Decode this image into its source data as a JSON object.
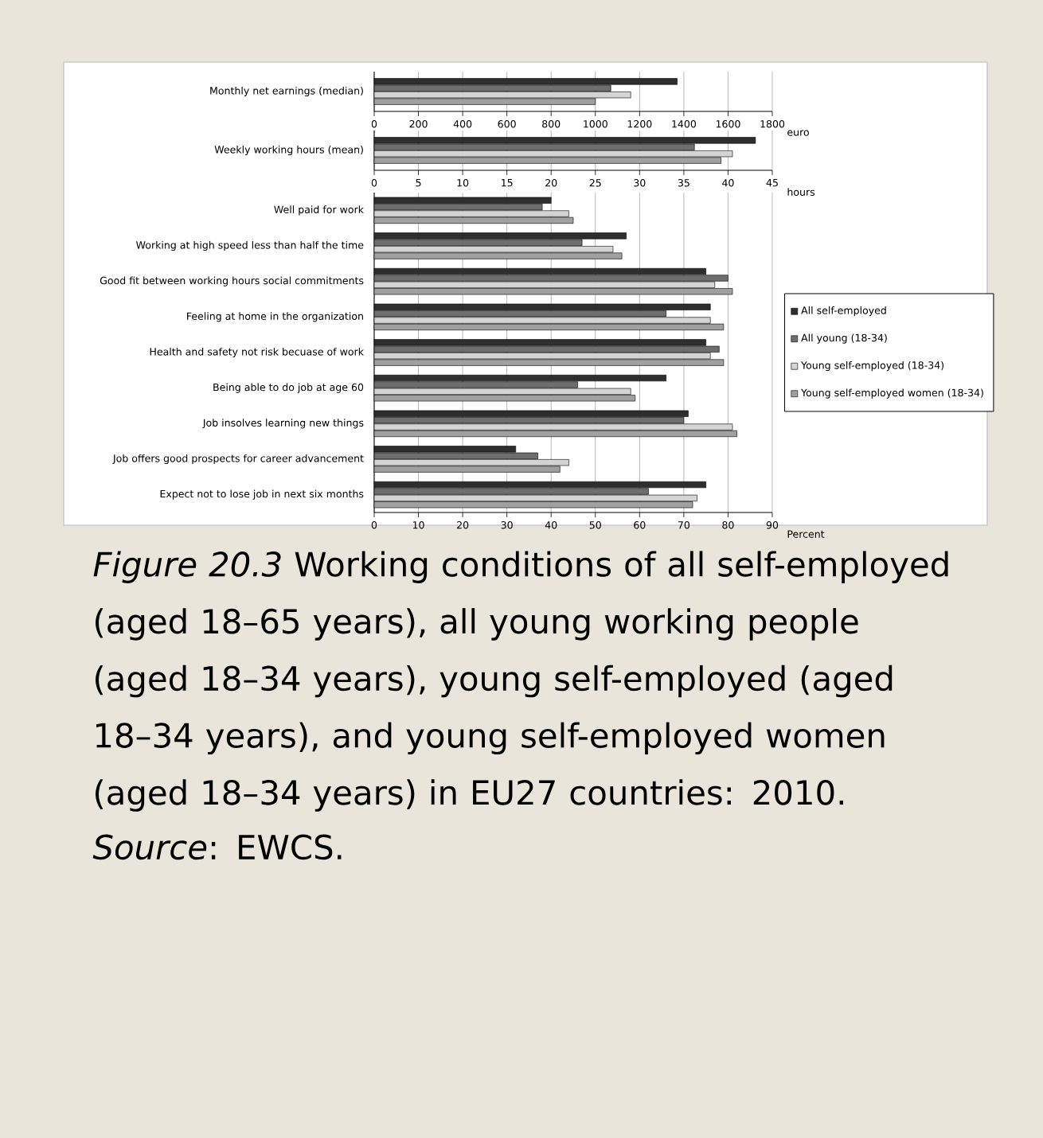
{
  "chart_data": [
    {
      "type": "bar",
      "orientation": "horizontal",
      "categories": [
        "Monthly net earnings (median)"
      ],
      "series": [
        {
          "color": "#2e2e2e",
          "values": [
            1370
          ]
        },
        {
          "color": "#6e6e6e",
          "values": [
            1070
          ]
        },
        {
          "color": "#d4d4d4",
          "values": [
            1160
          ]
        },
        {
          "color": "#a0a0a0",
          "values": [
            1000
          ]
        }
      ],
      "xlim": [
        0,
        1800
      ],
      "xticks": [
        0,
        200,
        400,
        600,
        800,
        1000,
        1200,
        1400,
        1600,
        1800
      ],
      "xlabel": "euro",
      "grid": "x"
    },
    {
      "type": "bar",
      "orientation": "horizontal",
      "categories": [
        "Weekly working hours (mean)"
      ],
      "series": [
        {
          "color": "#2e2e2e",
          "values": [
            43.1
          ]
        },
        {
          "color": "#6e6e6e",
          "values": [
            36.2
          ]
        },
        {
          "color": "#d4d4d4",
          "values": [
            40.5
          ]
        },
        {
          "color": "#a0a0a0",
          "values": [
            39.2
          ]
        }
      ],
      "xlim": [
        0,
        45
      ],
      "xticks": [
        0,
        5,
        10,
        15,
        20,
        25,
        30,
        35,
        40,
        45
      ],
      "xlabel": "hours",
      "grid": "x"
    },
    {
      "type": "bar",
      "orientation": "horizontal",
      "categories": [
        "Well paid for work",
        "Working at high speed less than half the time",
        "Good fit between working hours social commitments",
        "Feeling at home in the organization",
        "Health and safety not risk becuase of work",
        "Being able to do job at age 60",
        "Job insolves learning new things",
        "Job offers good prospects for career advancement",
        "Expect not to lose job in next six months"
      ],
      "series": [
        {
          "name": "All self-employed",
          "color": "#2e2e2e",
          "values": [
            40,
            57,
            75,
            76,
            75,
            66,
            71,
            32,
            75
          ]
        },
        {
          "name": "All young (18-34)",
          "color": "#6e6e6e",
          "values": [
            38,
            47,
            80,
            66,
            78,
            46,
            70,
            37,
            62
          ]
        },
        {
          "name": "Young self-employed (18-34)",
          "color": "#d4d4d4",
          "values": [
            44,
            54,
            77,
            76,
            76,
            58,
            81,
            44,
            73
          ]
        },
        {
          "name": "Young self-employed women (18-34)",
          "color": "#a0a0a0",
          "values": [
            45,
            56,
            81,
            79,
            79,
            59,
            82,
            42,
            72
          ]
        }
      ],
      "xlim": [
        0,
        90
      ],
      "xticks": [
        0,
        10,
        20,
        30,
        40,
        50,
        60,
        70,
        80,
        90
      ],
      "xlabel": "Percent",
      "grid": "x",
      "legend": "right",
      "annotations": [
        "*Figure 20.3* Working conditions of all self-employed (aged 18–65 years), all young working people (aged 18–34 years), young self-employed (aged 18–34 years), and young self-employed women (aged 18–34 years) in EU27 countries: 2010.",
        "*Source*: EWCS."
      ]
    }
  ]
}
